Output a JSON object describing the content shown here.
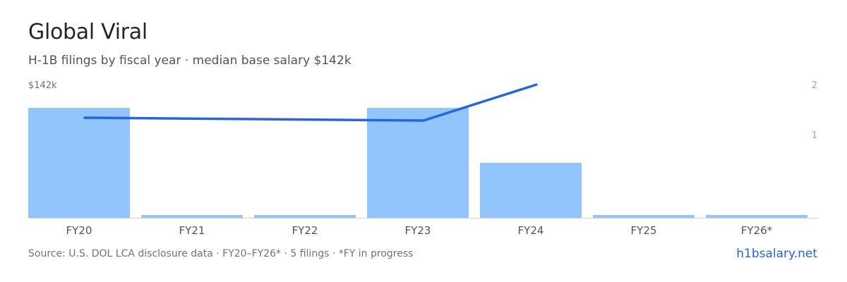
{
  "header": {
    "title": "Global Viral",
    "subtitle": "H-1B filings by fiscal year · median base salary $142k"
  },
  "footer": {
    "source": "Source: U.S. DOL LCA disclosure data · FY20–FY26* · 5 filings · *FY in progress",
    "brand": "h1bsalary.net"
  },
  "colors": {
    "bar": "#93c5fd",
    "line": "#2563eb",
    "axis": "#d1d5db",
    "tick": "#9ca3af",
    "category": "#4b5563"
  },
  "chart_data": {
    "type": "bar",
    "categories": [
      "FY20",
      "FY21",
      "FY22",
      "FY23",
      "FY24",
      "FY25",
      "FY26*"
    ],
    "series": [
      {
        "type": "bar",
        "values": [
          2,
          0,
          0,
          2,
          1,
          0,
          0
        ],
        "axis": "right"
      },
      {
        "type": "line",
        "values": [
          1.22,
          null,
          null,
          1.2,
          1.6,
          null,
          null
        ],
        "axis": "right"
      }
    ],
    "left_axis_label": "$142k",
    "right_axis_ticks": [
      "1",
      "2"
    ],
    "ylim_right": [
      0,
      2
    ]
  }
}
